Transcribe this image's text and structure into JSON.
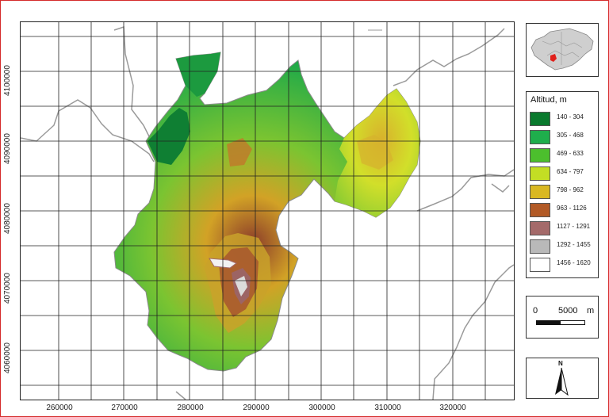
{
  "map": {
    "x_ticks": [
      "260000",
      "270000",
      "280000",
      "290000",
      "300000",
      "310000",
      "320000"
    ],
    "y_ticks": [
      "4100000",
      "4090000",
      "4080000",
      "4070000",
      "4060000"
    ]
  },
  "legend": {
    "title": "Altitud, m",
    "classes": [
      {
        "label": "140 - 304",
        "color": "#0a7a2e"
      },
      {
        "label": "305 - 468",
        "color": "#1fae4c"
      },
      {
        "label": "469 - 633",
        "color": "#4cbf2d"
      },
      {
        "label": "634 - 797",
        "color": "#c3de24"
      },
      {
        "label": "798 - 962",
        "color": "#d9b822"
      },
      {
        "label": "963 - 1126",
        "color": "#b25a26"
      },
      {
        "label": "1127 - 1291",
        "color": "#a46a6a"
      },
      {
        "label": "1292 - 1455",
        "color": "#b9b9b9"
      },
      {
        "label": "1456 - 1620",
        "color": "#ffffff"
      }
    ]
  },
  "scale": {
    "zero": "0",
    "distance": "5000",
    "unit": "m"
  },
  "north": {
    "label": "N"
  },
  "colors": {
    "frame_border": "#d42a2a",
    "inset_region": "#cccccc",
    "inset_highlight": "#e0201b",
    "roads": "#9a9a9a"
  }
}
